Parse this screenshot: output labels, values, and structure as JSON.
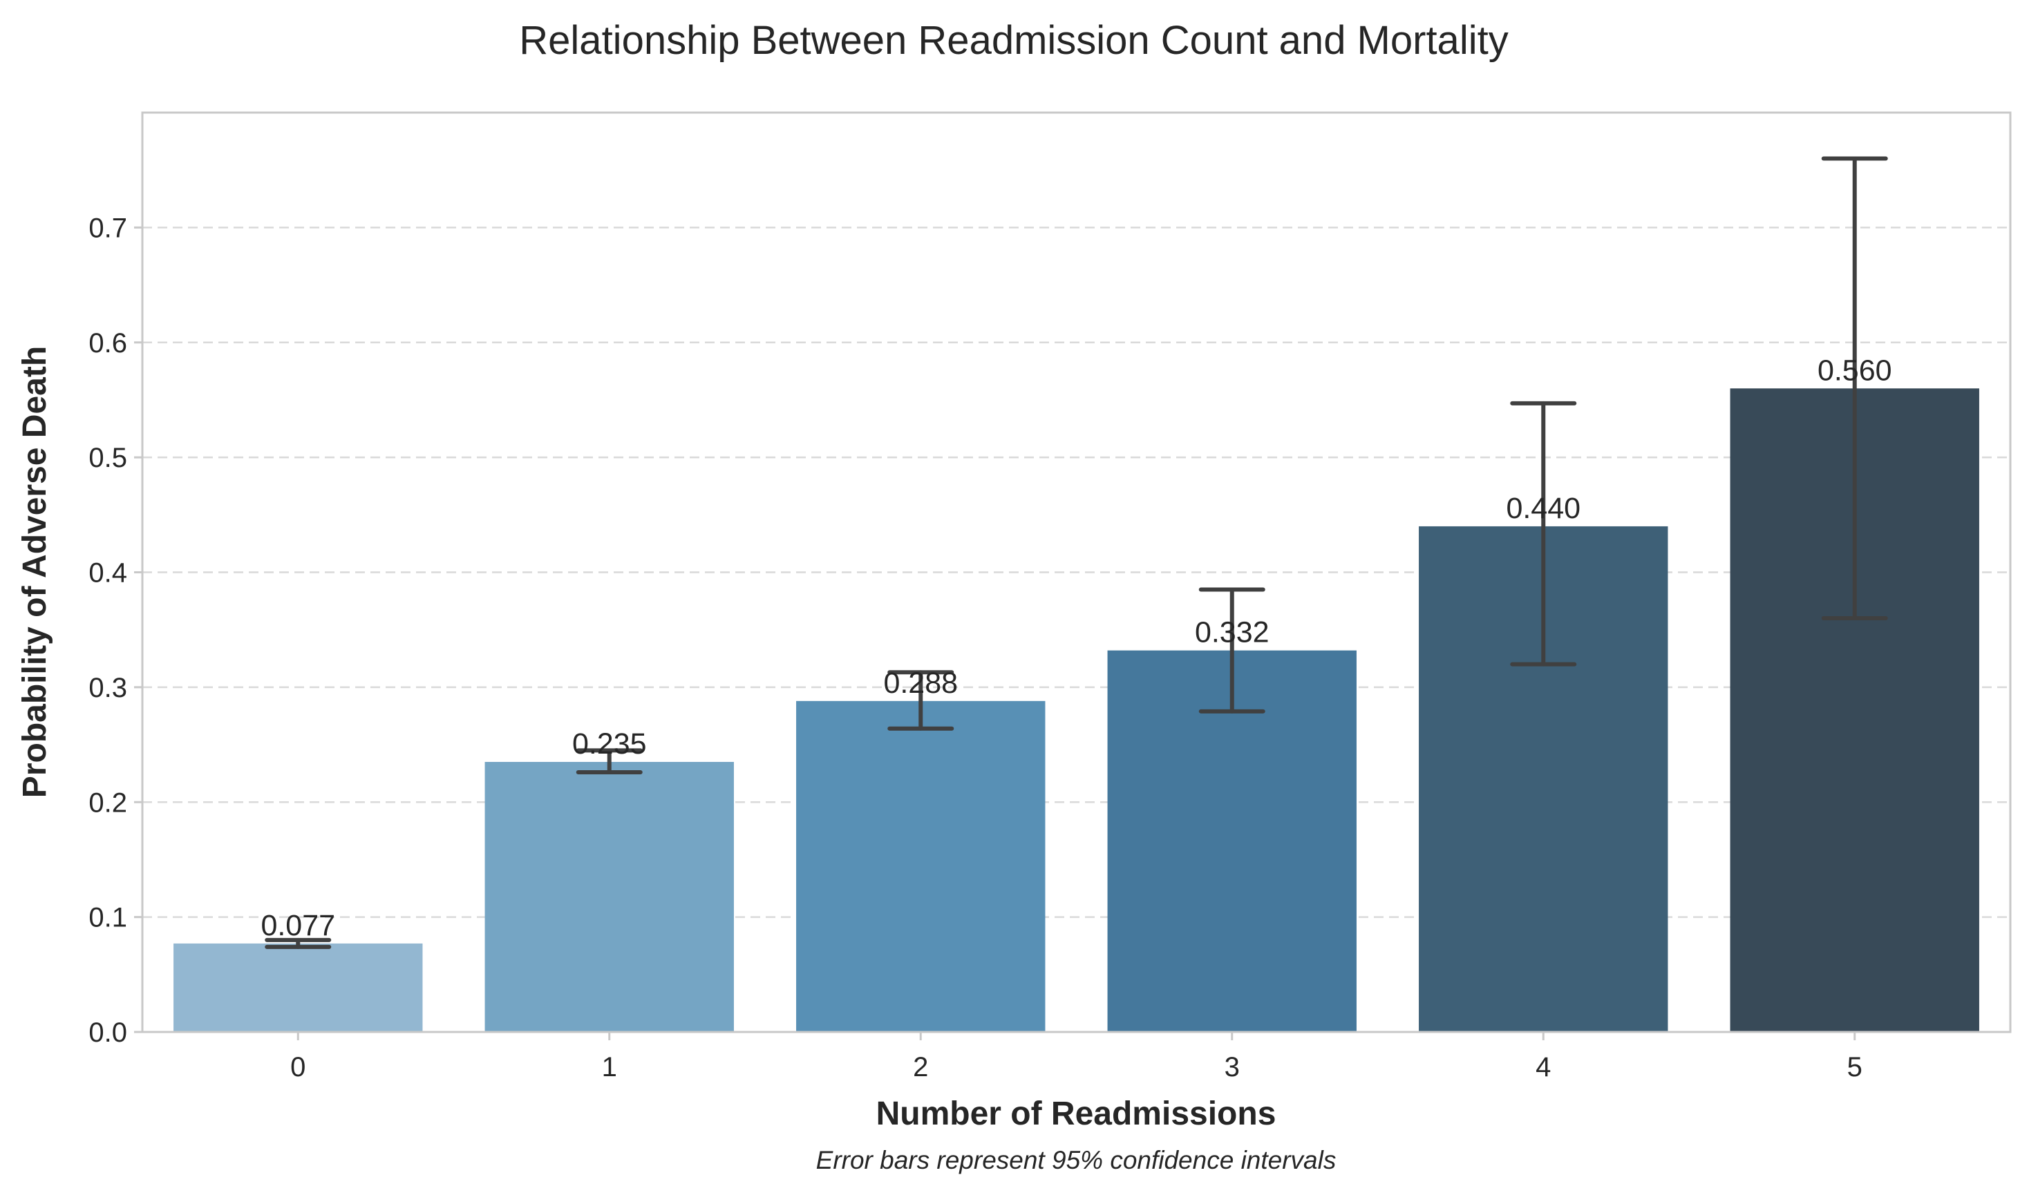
{
  "chart_data": {
    "type": "bar",
    "title": "Relationship Between Readmission Count and Mortality",
    "xlabel": "Number of Readmissions",
    "ylabel": "Probability of Adverse Death",
    "caption": "Error bars represent 95% confidence intervals",
    "categories": [
      "0",
      "1",
      "2",
      "3",
      "4",
      "5"
    ],
    "values": [
      0.077,
      0.235,
      0.288,
      0.332,
      0.44,
      0.56
    ],
    "value_labels": [
      "0.077",
      "0.235",
      "0.288",
      "0.332",
      "0.440",
      "0.560"
    ],
    "ci_low": [
      0.074,
      0.226,
      0.264,
      0.279,
      0.32,
      0.36
    ],
    "ci_high": [
      0.08,
      0.245,
      0.313,
      0.385,
      0.547,
      0.76
    ],
    "ylim": [
      0.0,
      0.8
    ],
    "yticks": [
      0.0,
      0.1,
      0.2,
      0.3,
      0.4,
      0.5,
      0.6,
      0.7
    ],
    "ytick_labels": [
      "0.0",
      "0.1",
      "0.2",
      "0.3",
      "0.4",
      "0.5",
      "0.6",
      "0.7"
    ],
    "colors": [
      "#93b7d1",
      "#75a5c4",
      "#5890b5",
      "#45789c",
      "#3e6077",
      "#384a58"
    ],
    "error_color": "#404040",
    "grid": "horizontal dashed",
    "legend": "none"
  }
}
